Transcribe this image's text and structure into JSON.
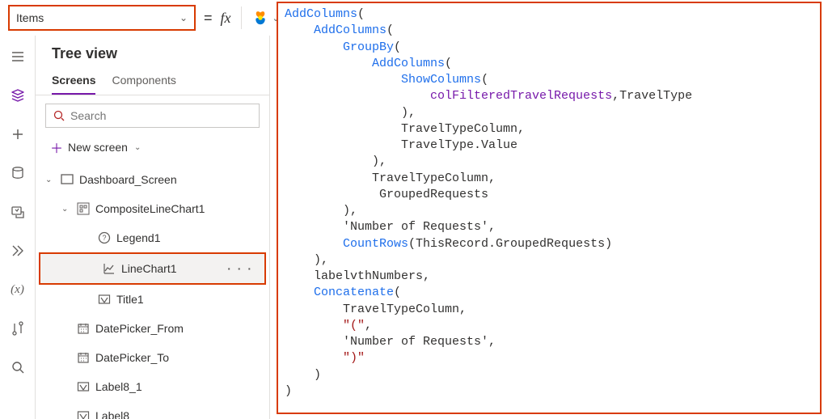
{
  "colors": {
    "accent": "#7719AA",
    "highlight_border": "#d83b01",
    "keyword": "#1f6feb",
    "identifier": "#7719AA",
    "string": "#a31515",
    "plain": "#323130"
  },
  "toolbar": {
    "property": "Items",
    "equals": "=",
    "fx": "fx"
  },
  "treeview": {
    "title": "Tree view",
    "tabs": {
      "screens": "Screens",
      "components": "Components"
    },
    "search_placeholder": "Search",
    "new_screen": "New screen"
  },
  "tree": {
    "n0": "Dashboard_Screen",
    "n1": "CompositeLineChart1",
    "n2": "Legend1",
    "n3": "LineChart1",
    "n4": "Title1",
    "n5": "DatePicker_From",
    "n6": "DatePicker_To",
    "n7": "Label8_1",
    "n8": "Label8"
  },
  "formula": [
    {
      "indent": 0,
      "tokens": [
        {
          "t": "k",
          "v": "AddColumns"
        },
        {
          "t": "pl",
          "v": "("
        }
      ]
    },
    {
      "indent": 1,
      "tokens": [
        {
          "t": "k",
          "v": "AddColumns"
        },
        {
          "t": "pl",
          "v": "("
        }
      ]
    },
    {
      "indent": 2,
      "tokens": [
        {
          "t": "k",
          "v": "GroupBy"
        },
        {
          "t": "pl",
          "v": "("
        }
      ]
    },
    {
      "indent": 3,
      "tokens": [
        {
          "t": "k",
          "v": "AddColumns"
        },
        {
          "t": "pl",
          "v": "("
        }
      ]
    },
    {
      "indent": 4,
      "tokens": [
        {
          "t": "k",
          "v": "ShowColumns"
        },
        {
          "t": "pl",
          "v": "("
        }
      ]
    },
    {
      "indent": 5,
      "tokens": [
        {
          "t": "id",
          "v": "colFilteredTravelRequests"
        },
        {
          "t": "pl",
          "v": ",TravelType"
        }
      ]
    },
    {
      "indent": 4,
      "tokens": [
        {
          "t": "pl",
          "v": "),"
        }
      ]
    },
    {
      "indent": 4,
      "tokens": [
        {
          "t": "pl",
          "v": "TravelTypeColumn,"
        }
      ]
    },
    {
      "indent": 4,
      "tokens": [
        {
          "t": "pl",
          "v": "TravelType.Value"
        }
      ]
    },
    {
      "indent": 3,
      "tokens": [
        {
          "t": "pl",
          "v": "),"
        }
      ]
    },
    {
      "indent": 3,
      "tokens": [
        {
          "t": "pl",
          "v": "TravelTypeColumn,"
        }
      ]
    },
    {
      "indent": 3,
      "tokens": [
        {
          "t": "pl",
          "v": " GroupedRequests"
        }
      ]
    },
    {
      "indent": 2,
      "tokens": [
        {
          "t": "pl",
          "v": "),"
        }
      ]
    },
    {
      "indent": 2,
      "tokens": [
        {
          "t": "pl",
          "v": "'Number of Requests',"
        }
      ]
    },
    {
      "indent": 2,
      "tokens": [
        {
          "t": "k",
          "v": "CountRows"
        },
        {
          "t": "pl",
          "v": "(ThisRecord.GroupedRequests)"
        }
      ]
    },
    {
      "indent": 1,
      "tokens": [
        {
          "t": "pl",
          "v": "),"
        }
      ]
    },
    {
      "indent": 1,
      "tokens": [
        {
          "t": "pl",
          "v": "labelvthNumbers,"
        }
      ]
    },
    {
      "indent": 1,
      "tokens": [
        {
          "t": "k",
          "v": "Concatenate"
        },
        {
          "t": "pl",
          "v": "("
        }
      ]
    },
    {
      "indent": 2,
      "tokens": [
        {
          "t": "pl",
          "v": "TravelTypeColumn,"
        }
      ]
    },
    {
      "indent": 2,
      "tokens": [
        {
          "t": "str",
          "v": "\"(\""
        },
        {
          "t": "pl",
          "v": ","
        }
      ]
    },
    {
      "indent": 2,
      "tokens": [
        {
          "t": "pl",
          "v": "'Number of Requests',"
        }
      ]
    },
    {
      "indent": 2,
      "tokens": [
        {
          "t": "str",
          "v": "\")\""
        }
      ]
    },
    {
      "indent": 1,
      "tokens": [
        {
          "t": "pl",
          "v": ")"
        }
      ]
    },
    {
      "indent": 0,
      "tokens": [
        {
          "t": "pl",
          "v": ")"
        }
      ]
    }
  ],
  "indent_unit": "    "
}
